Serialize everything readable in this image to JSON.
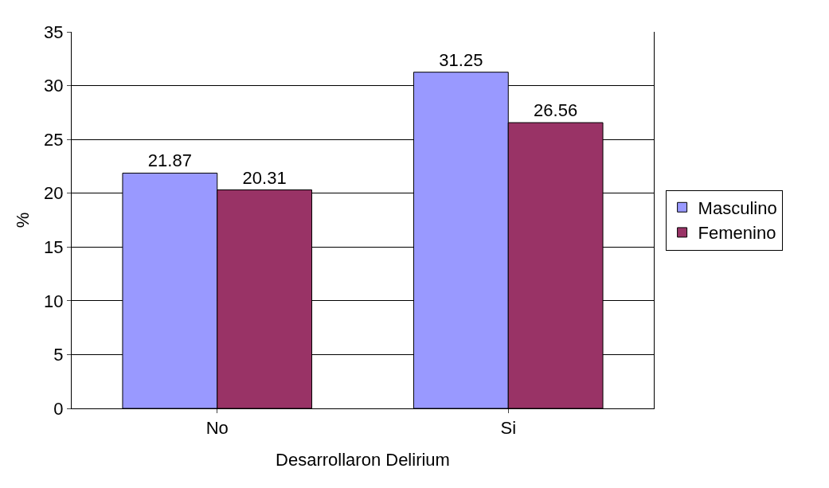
{
  "chart_data": {
    "type": "bar",
    "xlabel": "Desarrollaron Delirium",
    "ylabel": "%",
    "categories": [
      "No",
      "Si"
    ],
    "series": [
      {
        "name": "Masculino",
        "color": "#9999ff",
        "values": [
          21.87,
          31.25
        ]
      },
      {
        "name": "Femenino",
        "color": "#993366",
        "values": [
          20.31,
          26.56
        ]
      }
    ],
    "ylim": [
      0,
      35
    ],
    "yticks": [
      0,
      5,
      10,
      15,
      20,
      25,
      30,
      35
    ],
    "grid": "y",
    "legend": "right",
    "data_labels": true
  }
}
